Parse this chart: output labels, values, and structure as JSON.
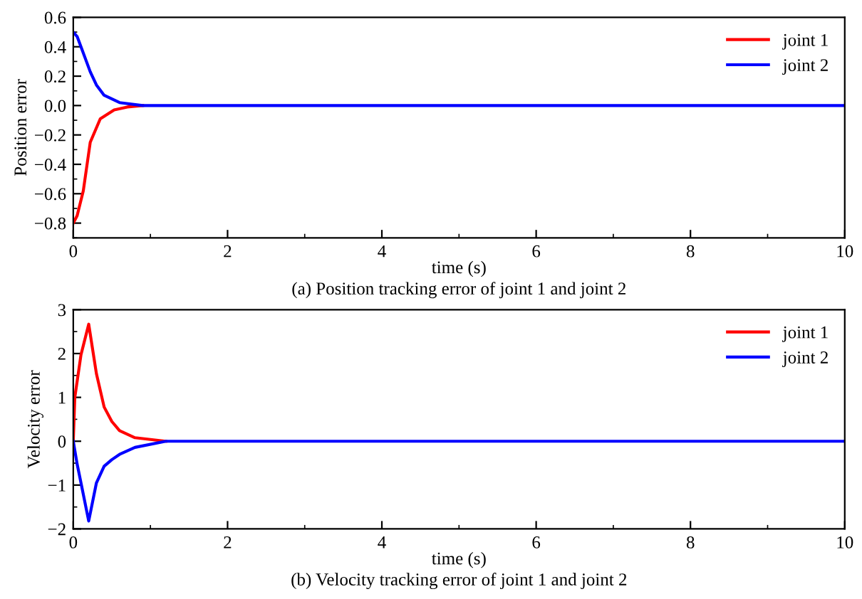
{
  "chart_data": [
    {
      "type": "line",
      "xlabel": "time (s)",
      "ylabel": "Position error",
      "annotations": [
        "(a) Position tracking error of joint 1 and joint 2"
      ],
      "xlim": [
        0,
        10
      ],
      "ylim": [
        -0.9,
        0.6
      ],
      "xticks": [
        0,
        2,
        4,
        6,
        8,
        10
      ],
      "yticks": [
        {
          "value": -0.8,
          "label": "−0.8"
        },
        {
          "value": -0.6,
          "label": "−0.6"
        },
        {
          "value": -0.4,
          "label": "−0.4"
        },
        {
          "value": -0.2,
          "label": "−0.2"
        },
        {
          "value": 0,
          "label": "0.0"
        },
        {
          "value": 0.2,
          "label": "0.2"
        },
        {
          "value": 0.4,
          "label": "0.4"
        },
        {
          "value": 0.6,
          "label": "0.6"
        }
      ],
      "legend": "top right",
      "marker": "none",
      "line_style": "solid",
      "series": [
        {
          "name": "joint 1",
          "color": "#ff0000",
          "x": [
            0,
            0.05,
            0.13,
            0.22,
            0.35,
            0.53,
            0.7,
            0.9
          ],
          "values": [
            -0.8,
            -0.75,
            -0.58,
            -0.25,
            -0.09,
            -0.03,
            -0.01,
            0
          ]
        },
        {
          "name": "joint 2",
          "color": "#0000ff",
          "x": [
            0,
            0.05,
            0.1,
            0.22,
            0.3,
            0.4,
            0.6,
            0.9,
            1.2,
            2,
            4,
            6,
            8,
            10
          ],
          "values": [
            0.5,
            0.47,
            0.4,
            0.23,
            0.14,
            0.07,
            0.02,
            0,
            0,
            0,
            0,
            0,
            0,
            0
          ]
        }
      ]
    },
    {
      "type": "line",
      "xlabel": "time (s)",
      "ylabel": "Velocity error",
      "annotations": [
        "(b) Velocity tracking error of joint 1 and joint 2"
      ],
      "xlim": [
        0,
        10
      ],
      "ylim": [
        -2,
        3
      ],
      "xticks": [
        0,
        2,
        4,
        6,
        8,
        10
      ],
      "yticks": [
        {
          "value": -2,
          "label": "−2"
        },
        {
          "value": -1,
          "label": "−1"
        },
        0,
        1,
        2,
        3
      ],
      "legend": "top right",
      "marker": "none",
      "line_style": "solid",
      "series": [
        {
          "name": "joint 1",
          "color": "#ff0000",
          "x": [
            0,
            0.02,
            0.1,
            0.2,
            0.3,
            0.4,
            0.5,
            0.6,
            0.8,
            1.2
          ],
          "values": [
            0,
            1.0,
            1.97,
            2.67,
            1.54,
            0.78,
            0.45,
            0.24,
            0.08,
            0
          ]
        },
        {
          "name": "joint 2",
          "color": "#0000ff",
          "x": [
            0,
            0.05,
            0.1,
            0.2,
            0.3,
            0.4,
            0.5,
            0.6,
            0.8,
            1.2,
            2,
            4,
            6,
            8,
            10
          ],
          "values": [
            0,
            -0.52,
            -0.95,
            -1.82,
            -0.95,
            -0.57,
            -0.42,
            -0.3,
            -0.14,
            0,
            0,
            0,
            0,
            0,
            0
          ]
        }
      ]
    }
  ]
}
